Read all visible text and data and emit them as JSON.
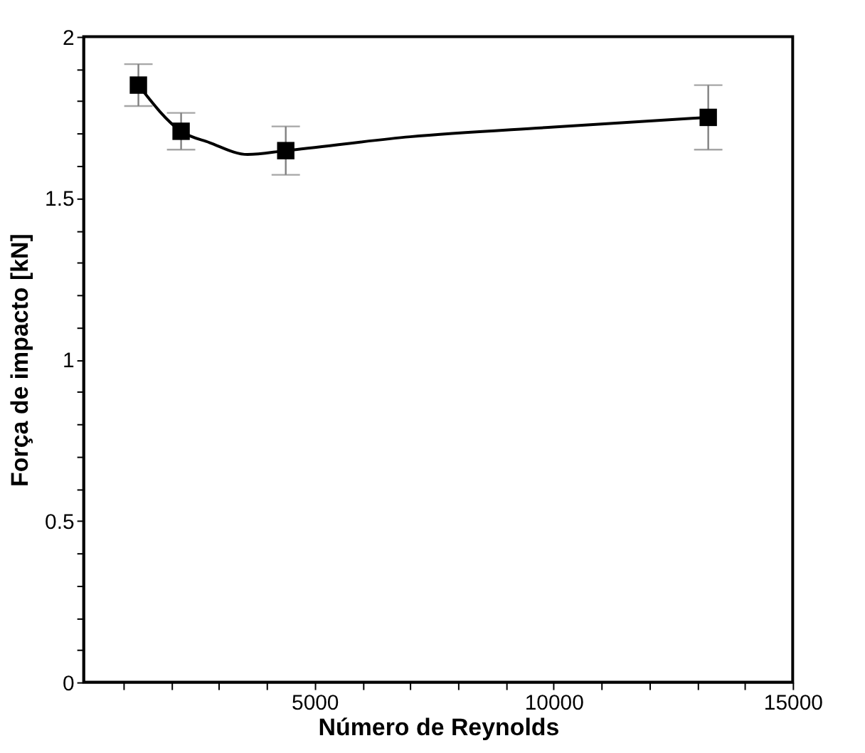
{
  "chart_data": {
    "type": "scatter",
    "xlabel": "Número de Reynolds",
    "ylabel": "Força de impacto [kN]",
    "xlim": [
      170,
      15000
    ],
    "ylim": [
      0,
      2
    ],
    "xticks": [
      {
        "value": 1000,
        "label": null
      },
      {
        "value": 2000,
        "label": null
      },
      {
        "value": 3000,
        "label": null
      },
      {
        "value": 4000,
        "label": null
      },
      5000,
      {
        "value": 6000,
        "label": null
      },
      {
        "value": 7000,
        "label": null
      },
      {
        "value": 8000,
        "label": null
      },
      {
        "value": 9000,
        "label": null
      },
      10000,
      {
        "value": 11000,
        "label": null
      },
      {
        "value": 12000,
        "label": null
      },
      {
        "value": 13000,
        "label": null
      },
      {
        "value": 14000,
        "label": null
      },
      15000
    ],
    "yticks": [
      0,
      {
        "value": 0.1,
        "label": null
      },
      {
        "value": 0.2,
        "label": null
      },
      {
        "value": 0.3,
        "label": null
      },
      {
        "value": 0.4,
        "label": null
      },
      0.5,
      {
        "value": 0.6,
        "label": null
      },
      {
        "value": 0.7,
        "label": null
      },
      {
        "value": 0.8,
        "label": null
      },
      {
        "value": 0.9,
        "label": null
      },
      1,
      {
        "value": 1.1,
        "label": null
      },
      {
        "value": 1.2,
        "label": null
      },
      {
        "value": 1.3,
        "label": null
      },
      {
        "value": 1.4,
        "label": null
      },
      1.5,
      {
        "value": 1.6,
        "label": null
      },
      {
        "value": 1.7,
        "label": null
      },
      {
        "value": 1.8,
        "label": null
      },
      {
        "value": 1.9,
        "label": null
      },
      2
    ],
    "grid": false,
    "marker": "square",
    "series": [
      {
        "type": "line",
        "color": "#000000",
        "marker": "none",
        "line_style": "solid",
        "x": [
          1315,
          2208,
          2800,
          3600,
          4397,
          7000,
          10000,
          13234
        ],
        "values": [
          1.85,
          1.707,
          1.672,
          1.635,
          1.647,
          1.69,
          1.72,
          1.75
        ]
      },
      {
        "type": "scatter",
        "color": "#000000",
        "x": [
          1315,
          2208,
          4397,
          13234
        ],
        "values": [
          1.85,
          1.707,
          1.647,
          1.75
        ],
        "errors": [
          0.065,
          0.057,
          0.075,
          0.1
        ]
      }
    ]
  }
}
